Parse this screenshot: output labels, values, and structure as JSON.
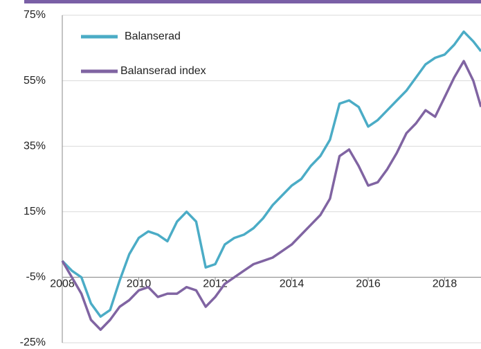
{
  "chart_data": {
    "type": "line",
    "x": [
      2008,
      2008.25,
      2008.5,
      2008.75,
      2009,
      2009.25,
      2009.5,
      2009.75,
      2010,
      2010.25,
      2010.5,
      2010.75,
      2011,
      2011.25,
      2011.5,
      2011.75,
      2012,
      2012.25,
      2012.5,
      2012.75,
      2013,
      2013.25,
      2013.5,
      2013.75,
      2014,
      2014.25,
      2014.5,
      2014.75,
      2015,
      2015.25,
      2015.5,
      2015.75,
      2016,
      2016.25,
      2016.5,
      2016.75,
      2017,
      2017.25,
      2017.5,
      2017.75,
      2018,
      2018.25,
      2018.5,
      2018.75,
      2018.95
    ],
    "series": [
      {
        "name": "Balanserad",
        "color": "#4bacc6",
        "values": [
          0,
          -3,
          -5,
          -13,
          -17,
          -15,
          -6,
          2,
          7,
          9,
          8,
          6,
          12,
          15,
          12,
          -2,
          -1,
          5,
          7,
          8,
          10,
          13,
          17,
          20,
          23,
          25,
          29,
          32,
          37,
          48,
          49,
          47,
          41,
          43,
          46,
          49,
          52,
          56,
          60,
          62,
          63,
          66,
          70,
          67,
          64
        ]
      },
      {
        "name": "Balanserad index",
        "color": "#8064a2",
        "values": [
          0,
          -5,
          -10,
          -18,
          -21,
          -18,
          -14,
          -12,
          -9,
          -8,
          -11,
          -10,
          -10,
          -8,
          -9,
          -14,
          -11,
          -7,
          -5,
          -3,
          -1,
          0,
          1,
          3,
          5,
          8,
          11,
          14,
          19,
          32,
          34,
          29,
          23,
          24,
          28,
          33,
          39,
          42,
          46,
          44,
          50,
          56,
          61,
          55,
          47
        ]
      }
    ],
    "xlim": [
      2008,
      2018.95
    ],
    "xticks": [
      2008,
      2010,
      2012,
      2014,
      2016,
      2018
    ],
    "ylim": [
      -25,
      75
    ],
    "yticks": [
      {
        "value": -25,
        "label": "-25%"
      },
      {
        "value": -5,
        "label": "-5%"
      },
      {
        "value": 15,
        "label": "15%"
      },
      {
        "value": 35,
        "label": "35%"
      },
      {
        "value": 55,
        "label": "55%"
      },
      {
        "value": 75,
        "label": "75%"
      }
    ],
    "x_axis_at": -5,
    "grid": true,
    "legend": "upper left"
  }
}
